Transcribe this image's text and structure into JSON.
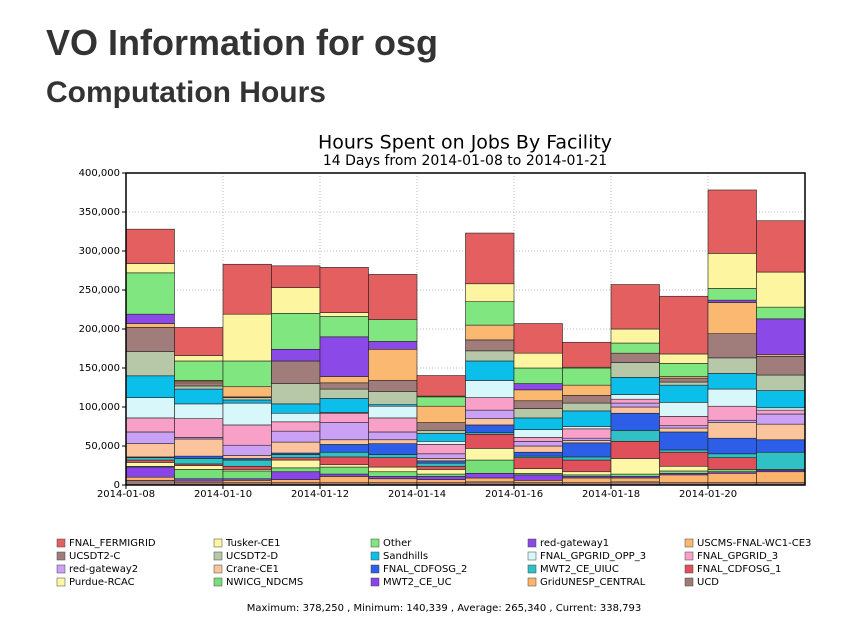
{
  "header": {
    "title": "VO Information for osg",
    "subtitle": "Computation Hours"
  },
  "chart_data": {
    "type": "stacked-bar",
    "title": "Hours Spent on Jobs By Facility",
    "subtitle": "14 Days from 2014-01-08 to 2014-01-21",
    "categories": [
      "2014-01-08",
      null,
      "2014-01-10",
      null,
      "2014-01-12",
      null,
      "2014-01-14",
      null,
      "2014-01-16",
      null,
      "2014-01-18",
      null,
      "2014-01-20",
      null
    ],
    "ylim": [
      0,
      400000
    ],
    "yticks": [
      0,
      {
        "value": 50000,
        "label": "50,000"
      },
      {
        "value": 100000,
        "label": "100,000"
      },
      {
        "value": 150000,
        "label": "150,000"
      },
      {
        "value": 200000,
        "label": "200,000"
      },
      {
        "value": 250000,
        "label": "250,000"
      },
      {
        "value": 300000,
        "label": "300,000"
      },
      {
        "value": 350000,
        "label": "350,000"
      },
      {
        "value": 400000,
        "label": "400,000"
      }
    ],
    "grid": true,
    "series": [
      {
        "name": "FNAL_FERMIGRID",
        "color": "#e35f60",
        "values": [
          44000,
          36000,
          64000,
          28000,
          58000,
          58000,
          26339,
          65000,
          38000,
          32000,
          57000,
          74000,
          81250,
          65793
        ]
      },
      {
        "name": "Tusker-CE1",
        "color": "#fdf5a0",
        "values": [
          12000,
          7000,
          60000,
          33000,
          5000,
          0,
          1000,
          23000,
          19000,
          1000,
          18000,
          12000,
          45000,
          45000
        ]
      },
      {
        "name": "Other",
        "color": "#80e680",
        "values": [
          53000,
          25000,
          33000,
          46000,
          26000,
          28000,
          12000,
          30000,
          20000,
          22000,
          13000,
          17000,
          15000,
          15000
        ]
      },
      {
        "name": "red-gateway1",
        "color": "#8b4ae8",
        "values": [
          12000,
          1000,
          0,
          15000,
          51000,
          10000,
          0,
          0,
          8000,
          0,
          0,
          0,
          3000,
          46000
        ]
      },
      {
        "name": "USCMS-FNAL-WC1-CE3",
        "color": "#fbb870",
        "values": [
          5000,
          2000,
          13000,
          0,
          8000,
          40000,
          21000,
          19000,
          14000,
          13000,
          0,
          2000,
          40000,
          2000
        ]
      },
      {
        "name": "UCSDT2-C",
        "color": "#a07c7a",
        "values": [
          31000,
          4000,
          1000,
          29000,
          8000,
          14000,
          10000,
          14000,
          10000,
          10000,
          12000,
          5000,
          31000,
          24000
        ]
      },
      {
        "name": "UCSDT2-D",
        "color": "#b7c8a8",
        "values": [
          31000,
          4000,
          3000,
          26000,
          12000,
          17000,
          4000,
          13000,
          12000,
          10000,
          19000,
          4000,
          20000,
          20000
        ]
      },
      {
        "name": "Sandhills",
        "color": "#0bbfea",
        "values": [
          28000,
          19000,
          4000,
          12000,
          18000,
          2000,
          10000,
          25000,
          15000,
          20000,
          22000,
          22000,
          20000,
          22000
        ]
      },
      {
        "name": "FNAL_GPGRID_OPP_3",
        "color": "#d8f7fb",
        "values": [
          26000,
          19000,
          28000,
          11000,
          1000,
          15000,
          4000,
          22000,
          10000,
          3000,
          6000,
          18000,
          22000,
          3000
        ]
      },
      {
        "name": "FNAL_GPGRID_3",
        "color": "#f9a0c8",
        "values": [
          18000,
          24000,
          26000,
          12000,
          12000,
          18000,
          12000,
          16000,
          5000,
          12000,
          5000,
          12000,
          18000,
          5000
        ]
      },
      {
        "name": "red-gateway2",
        "color": "#cba1f5",
        "values": [
          15000,
          2000,
          13000,
          14000,
          22000,
          10000,
          6000,
          11000,
          6000,
          3000,
          5000,
          3000,
          3000,
          13000
        ]
      },
      {
        "name": "Crane-CE1",
        "color": "#fbc49c",
        "values": [
          17000,
          22000,
          4000,
          14000,
          6000,
          5000,
          3000,
          8000,
          8000,
          3000,
          8000,
          5000,
          20000,
          20000
        ]
      },
      {
        "name": "FNAL_CDFOSG_2",
        "color": "#2c5ee8",
        "values": [
          1000,
          3000,
          2000,
          2000,
          10000,
          14000,
          3000,
          10000,
          5000,
          18000,
          22000,
          23000,
          20000,
          16000
        ]
      },
      {
        "name": "MWT2_CE_UIUC",
        "color": "#2fc1c3",
        "values": [
          3000,
          7000,
          8000,
          4000,
          6000,
          4000,
          4000,
          2000,
          2000,
          4000,
          14000,
          3000,
          5000,
          22000
        ]
      },
      {
        "name": "FNAL_CDFOSG_1",
        "color": "#e0505a",
        "values": [
          3000,
          2000,
          4000,
          3000,
          10000,
          12000,
          4000,
          18000,
          14000,
          15000,
          22000,
          18000,
          15000,
          0
        ]
      },
      {
        "name": "Purdue-RCAC",
        "color": "#fff7a5",
        "values": [
          5000,
          5000,
          2000,
          10000,
          3000,
          6000,
          6000,
          15000,
          6000,
          4000,
          20000,
          6000,
          0,
          0
        ]
      },
      {
        "name": "NWICG_NDCMS",
        "color": "#77df77",
        "values": [
          1000,
          12000,
          10000,
          5000,
          9000,
          6000,
          3000,
          17000,
          2000,
          2000,
          3000,
          3000,
          3000,
          1000
        ]
      },
      {
        "name": "MWT2_CE_UC",
        "color": "#8a45e8",
        "values": [
          13000,
          3000,
          2000,
          10000,
          3000,
          3000,
          4000,
          6000,
          7000,
          2000,
          2000,
          2000,
          2000,
          2000
        ]
      },
      {
        "name": "GridUNESP_CENTRAL",
        "color": "#fcb46c",
        "values": [
          4000,
          2000,
          3000,
          4000,
          8000,
          5000,
          4000,
          5000,
          3000,
          6000,
          5000,
          10000,
          12000,
          14000
        ]
      },
      {
        "name": "UCD",
        "color": "#a17a75",
        "values": [
          6000,
          3000,
          3000,
          3000,
          3000,
          3000,
          3000,
          4000,
          3000,
          3000,
          4000,
          3000,
          3000,
          3000
        ]
      }
    ],
    "footer": "Maximum: 378,250 , Minimum: 140,339 , Average: 265,340 , Current: 338,793"
  }
}
